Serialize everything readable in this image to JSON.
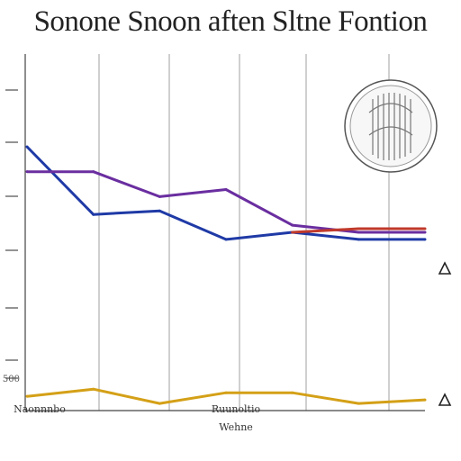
{
  "chart_data": {
    "type": "line",
    "title": "Sonone Snoon aften Sltne Fontion",
    "x_tick_labels": [
      "Naonnnbo",
      "",
      "Ruunoltio"
    ],
    "xlabel": "Wehne",
    "y_tick_labels": [
      "",
      "",
      "",
      "",
      "",
      "",
      "500"
    ],
    "right_markers": [
      "",
      "",
      ""
    ],
    "x": [
      0,
      1,
      2,
      3,
      4,
      5,
      6
    ],
    "ylim": [
      0,
      100
    ],
    "grid": "vertical",
    "series": [
      {
        "color": "#1f3aa6",
        "values": [
          74,
          55,
          56,
          48,
          50,
          48,
          48
        ]
      },
      {
        "color": "#6a2ea0",
        "values": [
          67,
          67,
          60,
          62,
          52,
          50,
          50
        ]
      },
      {
        "color": "#c0392b",
        "values": [
          null,
          null,
          null,
          null,
          50,
          51,
          51
        ]
      },
      {
        "color": "#d4a017",
        "values": [
          4,
          6,
          2,
          5,
          5,
          2,
          3
        ]
      }
    ]
  },
  "colors": {
    "gridline": "#888888",
    "axis": "#444444"
  },
  "icons": {
    "top_right": "coin-icon"
  }
}
